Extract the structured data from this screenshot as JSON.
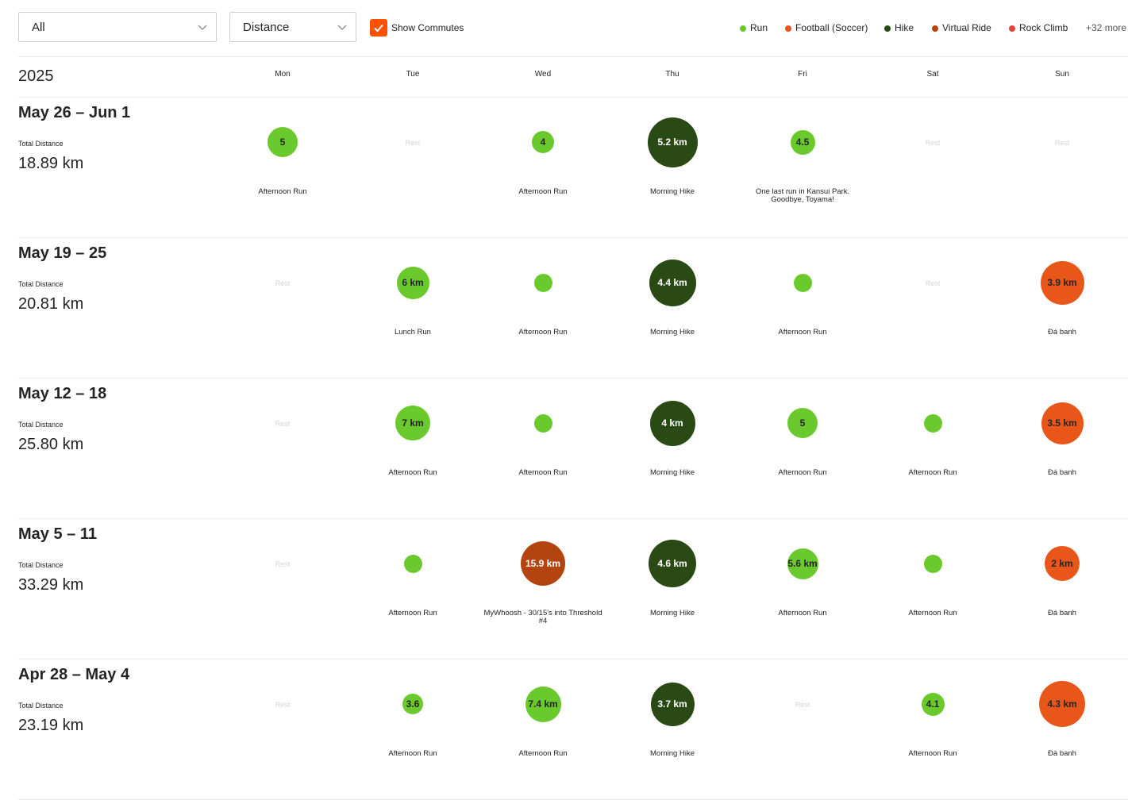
{
  "filters": {
    "activity_select": "All",
    "metric_select": "Distance",
    "show_commutes_label": "Show Commutes",
    "show_commutes_checked": true
  },
  "legend": {
    "items": [
      {
        "label": "Run",
        "color": "#6ac92c"
      },
      {
        "label": "Football (Soccer)",
        "color": "#e8561a"
      },
      {
        "label": "Hike",
        "color": "#2a4a15"
      },
      {
        "label": "Virtual Ride",
        "color": "#b4440f"
      },
      {
        "label": "Rock Climb",
        "color": "#e0453f"
      }
    ],
    "more": "+32 more"
  },
  "calendar": {
    "year": "2025",
    "days": [
      "Mon",
      "Tue",
      "Wed",
      "Thu",
      "Fri",
      "Sat",
      "Sun"
    ],
    "total_label": "Total Distance",
    "rest_label": "Rest"
  },
  "weeks": [
    {
      "range": "May 26 – Jun 1",
      "total": "18.89 km",
      "days": [
        {
          "label": "5",
          "name": "Afternoon Run",
          "type": "Run",
          "distance_km": 5
        },
        {
          "rest": true
        },
        {
          "label": "4",
          "name": "Afternoon Run",
          "type": "Run",
          "distance_km": 4
        },
        {
          "label": "5.2 km",
          "name": "Morning Hike",
          "type": "Hike",
          "distance_km": 5.2
        },
        {
          "label": "4.5",
          "name": "One last run in Kansui Park. Goodbye, Toyama!",
          "type": "Run",
          "distance_km": 4.5
        },
        {
          "rest": true
        },
        {
          "rest": true
        }
      ]
    },
    {
      "range": "May 19 – 25",
      "total": "20.81 km",
      "days": [
        {
          "rest": true
        },
        {
          "label": "6 km",
          "name": "Lunch Run",
          "type": "Run",
          "distance_km": 6
        },
        {
          "label": "",
          "name": "Afternoon Run",
          "type": "Run",
          "distance_km": 2.5
        },
        {
          "label": "4.4 km",
          "name": "Morning Hike",
          "type": "Hike",
          "distance_km": 4.4
        },
        {
          "label": "",
          "name": "Afternoon Run",
          "type": "Run",
          "distance_km": 2.5
        },
        {
          "rest": true
        },
        {
          "label": "3.9 km",
          "name": "Đá banh",
          "type": "Football (Soccer)",
          "distance_km": 3.9
        }
      ]
    },
    {
      "range": "May 12 – 18",
      "total": "25.80 km",
      "days": [
        {
          "rest": true
        },
        {
          "label": "7 km",
          "name": "Afternoon Run",
          "type": "Run",
          "distance_km": 7
        },
        {
          "label": "",
          "name": "Afternoon Run",
          "type": "Run",
          "distance_km": 2.5
        },
        {
          "label": "4 km",
          "name": "Morning Hike",
          "type": "Hike",
          "distance_km": 4
        },
        {
          "label": "5",
          "name": "Afternoon Run",
          "type": "Run",
          "distance_km": 5
        },
        {
          "label": "",
          "name": "Afternoon Run",
          "type": "Run",
          "distance_km": 2.5
        },
        {
          "label": "3.5 km",
          "name": "Đá banh",
          "type": "Football (Soccer)",
          "distance_km": 3.5
        }
      ]
    },
    {
      "range": "May 5 – 11",
      "total": "33.29 km",
      "days": [
        {
          "rest": true
        },
        {
          "label": "",
          "name": "Afternoon Run",
          "type": "Run",
          "distance_km": 2.5
        },
        {
          "label": "15.9 km",
          "name": "MyWhoosh - 30/15's into Threshold #4",
          "type": "Virtual Ride",
          "distance_km": 15.9
        },
        {
          "label": "4.6 km",
          "name": "Morning Hike",
          "type": "Hike",
          "distance_km": 4.6
        },
        {
          "label": "5.6 km",
          "name": "Afternoon Run",
          "type": "Run",
          "distance_km": 5.6
        },
        {
          "label": "",
          "name": "Afternoon Run",
          "type": "Run",
          "distance_km": 2.5
        },
        {
          "label": "2 km",
          "name": "Đá banh",
          "type": "Football (Soccer)",
          "distance_km": 2
        }
      ]
    },
    {
      "range": "Apr 28 – May 4",
      "total": "23.19 km",
      "days": [
        {
          "rest": true
        },
        {
          "label": "3.6",
          "name": "Afternoon Run",
          "type": "Run",
          "distance_km": 3.6
        },
        {
          "label": "7.4 km",
          "name": "Afternoon Run",
          "type": "Run",
          "distance_km": 7.4
        },
        {
          "label": "3.7 km",
          "name": "Morning Hike",
          "type": "Hike",
          "distance_km": 3.7
        },
        {
          "rest": true
        },
        {
          "label": "4.1",
          "name": "Afternoon Run",
          "type": "Run",
          "distance_km": 4.1
        },
        {
          "label": "4.3 km",
          "name": "Đá banh",
          "type": "Football (Soccer)",
          "distance_km": 4.3
        }
      ]
    }
  ]
}
